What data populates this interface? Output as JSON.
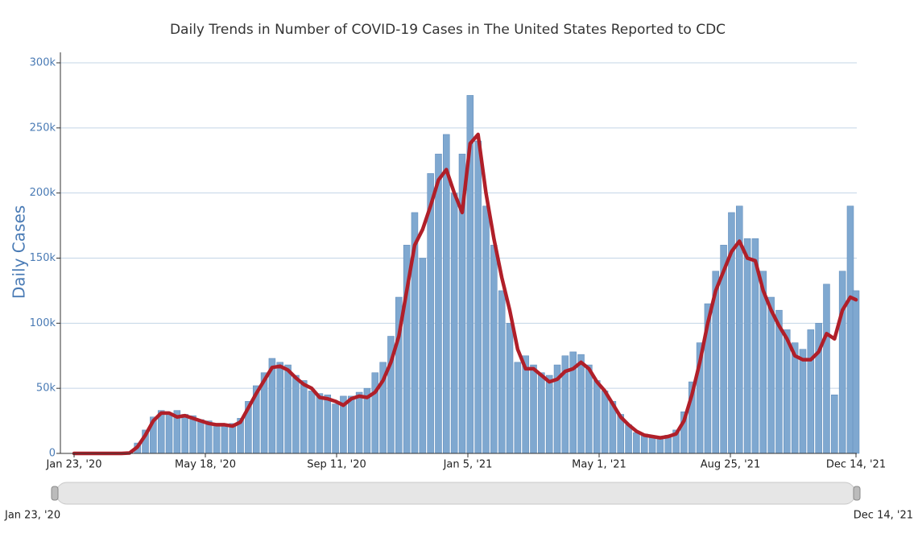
{
  "chart_data": {
    "type": "bar",
    "title": "Daily Trends in Number of COVID-19 Cases in The United States Reported to CDC",
    "y_label": "Daily Cases",
    "x": [
      "2020-01-23",
      "2020-01-30",
      "2020-02-06",
      "2020-02-13",
      "2020-02-20",
      "2020-02-27",
      "2020-03-05",
      "2020-03-12",
      "2020-03-19",
      "2020-03-26",
      "2020-04-02",
      "2020-04-09",
      "2020-04-16",
      "2020-04-23",
      "2020-04-30",
      "2020-05-07",
      "2020-05-14",
      "2020-05-21",
      "2020-05-28",
      "2020-06-04",
      "2020-06-11",
      "2020-06-18",
      "2020-06-25",
      "2020-07-02",
      "2020-07-09",
      "2020-07-16",
      "2020-07-23",
      "2020-07-30",
      "2020-08-06",
      "2020-08-13",
      "2020-08-20",
      "2020-08-27",
      "2020-09-03",
      "2020-09-10",
      "2020-09-17",
      "2020-09-24",
      "2020-10-01",
      "2020-10-08",
      "2020-10-15",
      "2020-10-22",
      "2020-10-29",
      "2020-11-05",
      "2020-11-12",
      "2020-11-19",
      "2020-11-26",
      "2020-12-03",
      "2020-12-10",
      "2020-12-17",
      "2020-12-24",
      "2020-12-31",
      "2021-01-07",
      "2021-01-14",
      "2021-01-21",
      "2021-01-28",
      "2021-02-04",
      "2021-02-11",
      "2021-02-18",
      "2021-02-25",
      "2021-03-04",
      "2021-03-11",
      "2021-03-18",
      "2021-03-25",
      "2021-04-01",
      "2021-04-08",
      "2021-04-15",
      "2021-04-22",
      "2021-04-29",
      "2021-05-06",
      "2021-05-13",
      "2021-05-20",
      "2021-05-27",
      "2021-06-03",
      "2021-06-10",
      "2021-06-17",
      "2021-06-24",
      "2021-07-01",
      "2021-07-08",
      "2021-07-15",
      "2021-07-22",
      "2021-07-29",
      "2021-08-05",
      "2021-08-12",
      "2021-08-19",
      "2021-08-26",
      "2021-09-02",
      "2021-09-09",
      "2021-09-16",
      "2021-09-23",
      "2021-09-30",
      "2021-10-07",
      "2021-10-14",
      "2021-10-21",
      "2021-10-28",
      "2021-11-04",
      "2021-11-11",
      "2021-11-18",
      "2021-11-25",
      "2021-12-02",
      "2021-12-09",
      "2021-12-14"
    ],
    "series": [
      {
        "type": "bar",
        "color": "#7fa8d0",
        "values": [
          0,
          0,
          0,
          0,
          0,
          0,
          0,
          500,
          8000,
          18000,
          28000,
          33000,
          30000,
          33000,
          30000,
          29000,
          26000,
          25000,
          23000,
          22000,
          23000,
          27000,
          40000,
          52000,
          62000,
          73000,
          70000,
          68000,
          60000,
          56000,
          48000,
          46000,
          45000,
          38000,
          44000,
          44000,
          47000,
          50000,
          62000,
          70000,
          90000,
          120000,
          160000,
          185000,
          150000,
          215000,
          230000,
          245000,
          200000,
          230000,
          275000,
          240000,
          190000,
          160000,
          125000,
          100000,
          70000,
          75000,
          68000,
          62000,
          60000,
          68000,
          75000,
          78000,
          76000,
          68000,
          56000,
          48000,
          40000,
          30000,
          22000,
          16000,
          15000,
          12000,
          13000,
          14000,
          18000,
          32000,
          55000,
          85000,
          115000,
          140000,
          160000,
          185000,
          190000,
          165000,
          165000,
          140000,
          120000,
          110000,
          95000,
          85000,
          80000,
          95000,
          100000,
          130000,
          45000,
          140000,
          190000,
          125000
        ]
      },
      {
        "type": "line",
        "color": "#b01f29",
        "values": [
          0,
          0,
          0,
          0,
          0,
          0,
          0,
          300,
          5000,
          14000,
          25000,
          31000,
          31000,
          28000,
          29000,
          27000,
          25000,
          23000,
          22000,
          22000,
          21000,
          24000,
          35000,
          46000,
          56000,
          66000,
          67000,
          64000,
          58000,
          53000,
          50000,
          43000,
          42000,
          40000,
          37000,
          42000,
          44000,
          43000,
          47000,
          56000,
          70000,
          90000,
          125000,
          160000,
          172000,
          190000,
          210000,
          218000,
          200000,
          185000,
          238000,
          245000,
          200000,
          165000,
          135000,
          110000,
          80000,
          65000,
          65000,
          60000,
          55000,
          57000,
          63000,
          65000,
          70000,
          65000,
          55000,
          48000,
          38000,
          28000,
          22000,
          17000,
          14000,
          13000,
          12000,
          13000,
          15000,
          25000,
          45000,
          70000,
          100000,
          125000,
          140000,
          155000,
          163000,
          150000,
          148000,
          125000,
          110000,
          98000,
          88000,
          75000,
          72000,
          72000,
          78000,
          92000,
          88000,
          110000,
          120000,
          118000
        ]
      }
    ],
    "xlim": [
      "2020-01-23",
      "2021-12-14"
    ],
    "xticks": [
      {
        "value": "2020-01-23",
        "label": "Jan 23, '20"
      },
      {
        "value": "2020-05-18",
        "label": "May 18, '20"
      },
      {
        "value": "2020-09-11",
        "label": "Sep 11, '20"
      },
      {
        "value": "2021-01-05",
        "label": "Jan 5, '21"
      },
      {
        "value": "2021-05-01",
        "label": "May 1, '21"
      },
      {
        "value": "2021-08-25",
        "label": "Aug 25, '21"
      },
      {
        "value": "2021-12-14",
        "label": "Dec 14, '21"
      }
    ],
    "ylim": [
      0,
      300000
    ],
    "yticks": [
      0,
      {
        "value": 50000,
        "label": "50k"
      },
      {
        "value": 100000,
        "label": "100k"
      },
      {
        "value": 150000,
        "label": "150k"
      },
      {
        "value": 200000,
        "label": "200k"
      },
      {
        "value": 250000,
        "label": "250k"
      },
      {
        "value": 300000,
        "label": "300k"
      }
    ],
    "grid": true
  }
}
